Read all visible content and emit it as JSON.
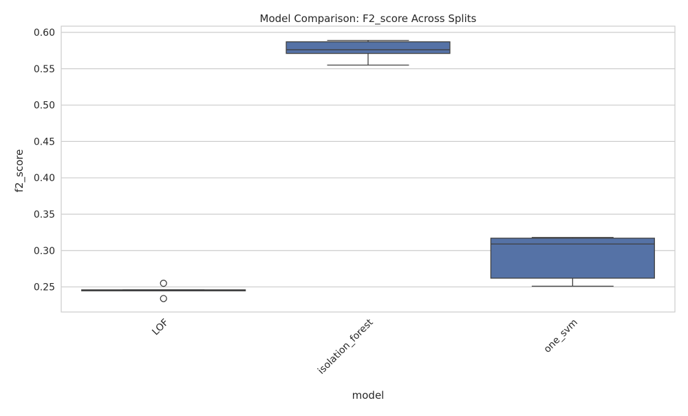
{
  "chart_data": {
    "type": "box",
    "title": "Model Comparison: F2_score Across Splits",
    "xlabel": "model",
    "ylabel": "f2_score",
    "ylim": [
      0.2155,
      0.6085
    ],
    "yticks": [
      0.25,
      0.3,
      0.35,
      0.4,
      0.45,
      0.5,
      0.55,
      0.6
    ],
    "ytick_labels": [
      "0.25",
      "0.30",
      "0.35",
      "0.40",
      "0.45",
      "0.50",
      "0.55",
      "0.60"
    ],
    "categories": [
      "LOF",
      "isolation_forest",
      "one_svm"
    ],
    "boxes": [
      {
        "category": "LOF",
        "whisker_low": 0.245,
        "q1": 0.245,
        "median": 0.245,
        "q3": 0.246,
        "whisker_high": 0.246,
        "outliers": [
          0.255,
          0.234
        ]
      },
      {
        "category": "isolation_forest",
        "whisker_low": 0.555,
        "q1": 0.571,
        "median": 0.576,
        "q3": 0.587,
        "whisker_high": 0.589,
        "outliers": []
      },
      {
        "category": "one_svm",
        "whisker_low": 0.251,
        "q1": 0.262,
        "median": 0.309,
        "q3": 0.317,
        "whisker_high": 0.318,
        "outliers": []
      }
    ],
    "grid": true,
    "box_color": "#5572a6",
    "line_color": "#3f3f3f",
    "grid_color": "#cccccc"
  }
}
